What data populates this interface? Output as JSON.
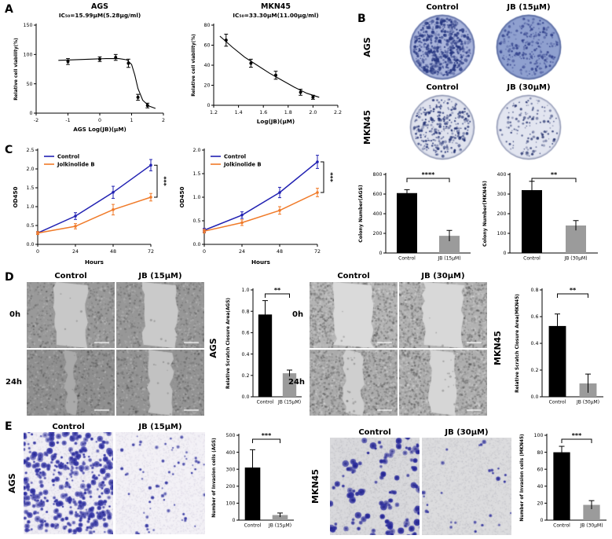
{
  "panels": {
    "a": {
      "label": "A"
    },
    "b": {
      "label": "B",
      "rows": [
        {
          "cell_line": "AGS",
          "col_labels": [
            "Control",
            "JB (15μM)"
          ]
        },
        {
          "cell_line": "MKN45",
          "col_labels": [
            "Control",
            "JB (30μM)"
          ]
        }
      ]
    },
    "c": {
      "label": "C"
    },
    "d": {
      "label": "D",
      "left": {
        "cell_line": "AGS",
        "col_labels": [
          "Control",
          "JB (15μM)"
        ],
        "row_labels": [
          "0h",
          "24h"
        ]
      },
      "right": {
        "cell_line": "MKN45",
        "col_labels": [
          "Control",
          "JB (30μM)"
        ],
        "row_labels": [
          "0h",
          "24h"
        ]
      }
    },
    "e": {
      "label": "E",
      "left": {
        "cell_line": "AGS",
        "col_labels": [
          "Control",
          "JB (15μM)"
        ]
      },
      "right": {
        "cell_line": "MKN45",
        "col_labels": [
          "Control",
          "JB (30μM)"
        ]
      }
    }
  },
  "colors": {
    "control_line": "#2121b2",
    "jolkinolide_line": "#f07a28",
    "control_bar": "#000000",
    "treated_bar": "#9b9b9b"
  },
  "chart_data": [
    {
      "id": "ags_dose",
      "type": "scatter",
      "title": "AGS",
      "annotation": "IC₅₀=15.99μM(5.28μg/ml)",
      "xlabel": "AGS Log(JB)(μM)",
      "ylabel": "Relative cell viability(%)",
      "xlim": [
        -2,
        2
      ],
      "ylim": [
        0,
        150
      ],
      "xticks": [
        "-2",
        "-1",
        "0",
        "1",
        "2"
      ],
      "yticks": [
        "0",
        "50",
        "100",
        "150"
      ],
      "points": {
        "x": [
          -1,
          0,
          0.5,
          0.9,
          1.2,
          1.5
        ],
        "y": [
          88,
          92,
          95,
          85,
          27,
          13
        ],
        "err": [
          5,
          4,
          5,
          7,
          5,
          4
        ]
      },
      "curve": {
        "x": [
          -1.3,
          -0.8,
          -0.3,
          0.2,
          0.6,
          0.85,
          1.0,
          1.1,
          1.2,
          1.35,
          1.55,
          1.75
        ],
        "y": [
          90,
          91,
          92,
          93,
          93,
          91,
          83,
          65,
          42,
          22,
          12,
          8
        ]
      }
    },
    {
      "id": "mkn_dose",
      "type": "scatter",
      "title": "MKN45",
      "annotation": "IC₅₀=33.30μM(11.00μg/ml)",
      "xlabel": "Log(JB)(μM)",
      "ylabel": "Relative cell viability(%)",
      "xlim": [
        1.2,
        2.2
      ],
      "ylim": [
        0,
        80
      ],
      "xticks": [
        "1.2",
        "1.4",
        "1.6",
        "1.8",
        "2.0",
        "2.2"
      ],
      "yticks": [
        "0",
        "20",
        "40",
        "60",
        "80"
      ],
      "points": {
        "x": [
          1.3,
          1.5,
          1.7,
          1.9,
          2.0
        ],
        "y": [
          65,
          42,
          30,
          13,
          8
        ],
        "err": [
          6,
          4,
          4,
          3,
          2
        ]
      },
      "curve": {
        "x": [
          1.25,
          1.35,
          1.45,
          1.55,
          1.65,
          1.75,
          1.85,
          1.95,
          2.05
        ],
        "y": [
          69,
          58,
          48,
          40,
          32,
          25,
          18,
          12,
          8
        ]
      }
    },
    {
      "id": "cck8_ags",
      "type": "line",
      "xlabel": "Hours",
      "ylabel": "OD450",
      "xlim": [
        0,
        72
      ],
      "ylim": [
        0,
        2.5
      ],
      "xticks": [
        "0",
        "24",
        "48",
        "72"
      ],
      "yticks": [
        "0.0",
        "0.5",
        "1.0",
        "1.5",
        "2.0",
        "2.5"
      ],
      "x": [
        0,
        24,
        48,
        72
      ],
      "series": [
        {
          "name": "Control",
          "color": "#2121b2",
          "values": [
            0.3,
            0.75,
            1.38,
            2.1
          ],
          "err": [
            0.04,
            0.09,
            0.16,
            0.15
          ]
        },
        {
          "name": "Jolkinolide B",
          "color": "#f07a28",
          "values": [
            0.3,
            0.48,
            0.92,
            1.25
          ],
          "err": [
            0.04,
            0.07,
            0.14,
            0.1
          ]
        }
      ],
      "significance": "***"
    },
    {
      "id": "cck8_mkn",
      "type": "line",
      "xlabel": "Hours",
      "ylabel": "OD450",
      "xlim": [
        0,
        72
      ],
      "ylim": [
        0,
        2.0
      ],
      "xticks": [
        "0",
        "24",
        "48",
        "72"
      ],
      "yticks": [
        "0.0",
        "0.5",
        "1.0",
        "1.5",
        "2.0"
      ],
      "x": [
        0,
        24,
        48,
        72
      ],
      "series": [
        {
          "name": "Control",
          "color": "#2121b2",
          "values": [
            0.3,
            0.62,
            1.1,
            1.75
          ],
          "err": [
            0.04,
            0.07,
            0.11,
            0.14
          ]
        },
        {
          "name": "Jolkinolide B",
          "color": "#f07a28",
          "values": [
            0.28,
            0.46,
            0.72,
            1.1
          ],
          "err": [
            0.04,
            0.06,
            0.08,
            0.09
          ]
        }
      ],
      "significance": "***"
    },
    {
      "id": "colony_ags",
      "type": "bar",
      "ylabel": "Colony Number(AGS)",
      "categories": [
        "Control",
        "JB (15μM)"
      ],
      "values": [
        610,
        175
      ],
      "err": [
        35,
        55
      ],
      "colors": [
        "#000000",
        "#9b9b9b"
      ],
      "ylim": [
        0,
        800
      ],
      "yticks": [
        "0",
        "200",
        "400",
        "600",
        "800"
      ],
      "significance": "****"
    },
    {
      "id": "colony_mkn",
      "type": "bar",
      "ylabel": "Colony Number(MKN45)",
      "categories": [
        "Control",
        "JB (30μM)"
      ],
      "values": [
        320,
        140
      ],
      "err": [
        45,
        25
      ],
      "colors": [
        "#000000",
        "#9b9b9b"
      ],
      "ylim": [
        0,
        400
      ],
      "yticks": [
        "0",
        "100",
        "200",
        "300",
        "400"
      ],
      "significance": "**"
    },
    {
      "id": "scratch_ags",
      "type": "bar",
      "ylabel": "Relative Scratch Closure Area(AGS)",
      "categories": [
        "Control",
        "JB (15μM)"
      ],
      "values": [
        0.77,
        0.22
      ],
      "err": [
        0.13,
        0.03
      ],
      "colors": [
        "#000000",
        "#9b9b9b"
      ],
      "ylim": [
        0,
        1.0
      ],
      "yticks": [
        "0.0",
        "0.2",
        "0.4",
        "0.6",
        "0.8",
        "1.0"
      ],
      "significance": "**"
    },
    {
      "id": "scratch_mkn",
      "type": "bar",
      "ylabel": "Relative Scratch Closure Area(MKN45)",
      "categories": [
        "Control",
        "JB (30μM)"
      ],
      "values": [
        0.53,
        0.1
      ],
      "err": [
        0.09,
        0.07
      ],
      "colors": [
        "#000000",
        "#9b9b9b"
      ],
      "ylim": [
        0,
        0.8
      ],
      "yticks": [
        "0.0",
        "0.2",
        "0.4",
        "0.6",
        "0.8"
      ],
      "significance": "**"
    },
    {
      "id": "invasion_ags",
      "type": "bar",
      "ylabel": "Number of Invasion cells (AGS)",
      "categories": [
        "Control",
        "JB (15μM)"
      ],
      "values": [
        310,
        30
      ],
      "err": [
        105,
        12
      ],
      "colors": [
        "#000000",
        "#9b9b9b"
      ],
      "ylim": [
        0,
        500
      ],
      "yticks": [
        "0",
        "100",
        "200",
        "300",
        "400",
        "500"
      ],
      "significance": "***"
    },
    {
      "id": "invasion_mkn",
      "type": "bar",
      "ylabel": "Number of Invasion cells (MKN45)",
      "categories": [
        "Control",
        "JB (30μM)"
      ],
      "values": [
        80,
        18
      ],
      "err": [
        7,
        5
      ],
      "colors": [
        "#000000",
        "#9b9b9b"
      ],
      "ylim": [
        0,
        100
      ],
      "yticks": [
        "0",
        "20",
        "40",
        "60",
        "80",
        "100"
      ],
      "significance": "***"
    }
  ],
  "images": [
    {
      "id": "dish_ags_control",
      "kind": "dish",
      "bg": "#a9b4da",
      "rim": "#8291c4",
      "dot": "#25357f",
      "count": 520,
      "rmin": 0.8,
      "rmax": 2.4,
      "seed": 1
    },
    {
      "id": "dish_ags_jb",
      "kind": "dish",
      "bg": "#8fa0cf",
      "rim": "#7487bd",
      "dot": "#33428c",
      "count": 260,
      "rmin": 0.7,
      "rmax": 2.0,
      "seed": 2
    },
    {
      "id": "dish_mkn_control",
      "kind": "dish",
      "bg": "#dfe2ed",
      "rim": "#c0c6da",
      "dot": "#1e2d70",
      "count": 320,
      "rmin": 0.8,
      "rmax": 2.0,
      "seed": 3
    },
    {
      "id": "dish_mkn_jb",
      "kind": "dish",
      "bg": "#e2e5f0",
      "rim": "#c4c9dc",
      "dot": "#28356f",
      "count": 140,
      "rmin": 0.7,
      "rmax": 1.9,
      "seed": 4
    },
    {
      "id": "scr_ags_0h_ctrl",
      "kind": "scratch",
      "bg": "#999999",
      "band": "#c8c8c8",
      "bandw": 0.36,
      "infill": 0.02,
      "seed": 5
    },
    {
      "id": "scr_ags_0h_jb",
      "kind": "scratch",
      "bg": "#979797",
      "band": "#cacaca",
      "bandw": 0.38,
      "infill": 0.02,
      "seed": 6
    },
    {
      "id": "scr_ags_24h_ctrl",
      "kind": "scratch",
      "bg": "#8f8f8f",
      "band": "#aaaaaa",
      "bandw": 0.1,
      "infill": 0.05,
      "seed": 7
    },
    {
      "id": "scr_ags_24h_jb",
      "kind": "scratch",
      "bg": "#939393",
      "band": "#c2c2c2",
      "bandw": 0.26,
      "infill": 0.04,
      "seed": 8
    },
    {
      "id": "scr_mkn_0h_ctrl",
      "kind": "scratch",
      "bg": "#b4b4b4",
      "band": "#dadada",
      "bandw": 0.42,
      "speckle": true,
      "infill": 0.01,
      "seed": 9
    },
    {
      "id": "scr_mkn_0h_jb",
      "kind": "scratch",
      "bg": "#b2b2b2",
      "band": "#d8d8d8",
      "bandw": 0.44,
      "speckle": true,
      "infill": 0.01,
      "seed": 10
    },
    {
      "id": "scr_mkn_24h_ctrl",
      "kind": "scratch",
      "bg": "#ababab",
      "band": "#cfcfcf",
      "bandw": 0.2,
      "speckle": true,
      "infill": 0.1,
      "seed": 11
    },
    {
      "id": "scr_mkn_24h_jb",
      "kind": "scratch",
      "bg": "#aeaeae",
      "band": "#d6d6d6",
      "bandw": 0.3,
      "speckle": true,
      "infill": 0.05,
      "seed": 12
    },
    {
      "id": "inv_ags_ctrl",
      "kind": "invasion",
      "bg": "#f1eff5",
      "pore": "#cfcbdd",
      "dot": "#3b3caa",
      "count": 400,
      "rmin": 1.2,
      "rmax": 4.0,
      "seed": 13
    },
    {
      "id": "inv_ags_jb",
      "kind": "invasion",
      "bg": "#f3f1f6",
      "pore": "#d6d2e2",
      "dot": "#4446ad",
      "count": 65,
      "rmin": 1.0,
      "rmax": 2.4,
      "seed": 14
    },
    {
      "id": "inv_mkn_ctrl",
      "kind": "invasion",
      "bg": "#d9d9dc",
      "pore": "#b9b9c0",
      "dot": "#2f309f",
      "count": 120,
      "rmin": 1.6,
      "rmax": 4.4,
      "seed": 15
    },
    {
      "id": "inv_mkn_jb",
      "kind": "invasion",
      "bg": "#dcdcde",
      "pore": "#bfbfc6",
      "dot": "#3c3da6",
      "count": 28,
      "rmin": 1.2,
      "rmax": 2.8,
      "seed": 16
    }
  ]
}
